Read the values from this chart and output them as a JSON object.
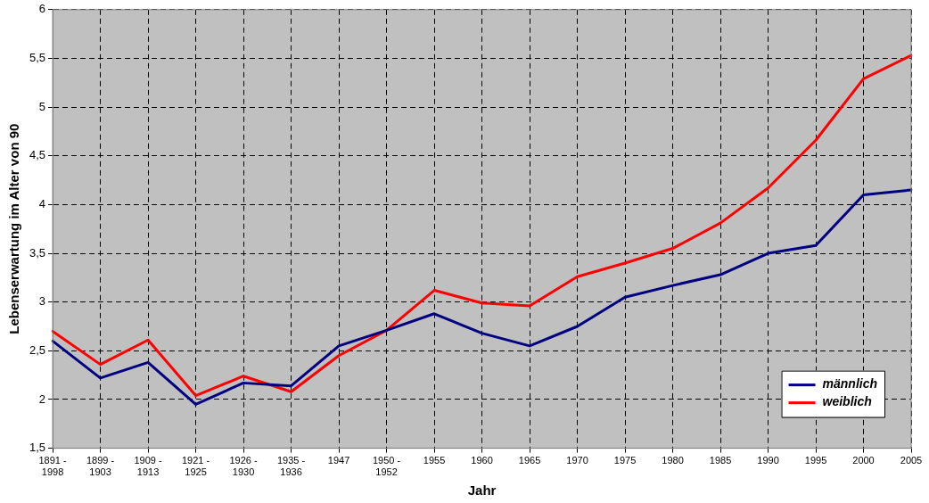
{
  "chart_data": {
    "type": "line",
    "xlabel": "Jahr",
    "ylabel": "Lebenserwartung im Alter von 90",
    "categories": [
      "1891 - 1998",
      "1899 - 1903",
      "1909 - 1913",
      "1921 - 1925",
      "1926 - 1930",
      "1935 - 1936",
      "1947",
      "1950 - 1952",
      "1955",
      "1960",
      "1965",
      "1970",
      "1975",
      "1980",
      "1985",
      "1990",
      "1995",
      "2000",
      "2005"
    ],
    "series": [
      {
        "name": "männlich",
        "color": "#000080",
        "values": [
          2.6,
          2.22,
          2.38,
          1.95,
          2.17,
          2.14,
          2.55,
          2.71,
          2.88,
          2.68,
          2.55,
          2.75,
          3.05,
          3.17,
          3.28,
          3.5,
          3.58,
          4.1,
          4.15
        ]
      },
      {
        "name": "weiblich",
        "color": "#ff0000",
        "values": [
          2.7,
          2.36,
          2.61,
          2.04,
          2.24,
          2.08,
          2.45,
          2.71,
          3.12,
          2.99,
          2.96,
          3.26,
          3.4,
          3.55,
          3.81,
          4.17,
          4.66,
          5.29,
          5.53
        ]
      }
    ],
    "ylim": [
      1.5,
      6
    ],
    "yticks": [
      {
        "value": 1.5,
        "label": "1,5"
      },
      2,
      {
        "value": 2.5,
        "label": "2,5"
      },
      3,
      {
        "value": 3.5,
        "label": "3,5"
      },
      4,
      {
        "value": 4.5,
        "label": "4,5"
      },
      5,
      {
        "value": 5.5,
        "label": "5,5"
      },
      6
    ],
    "grid": true,
    "legend": "bottom right",
    "marker": "none",
    "line_style": "solid"
  }
}
